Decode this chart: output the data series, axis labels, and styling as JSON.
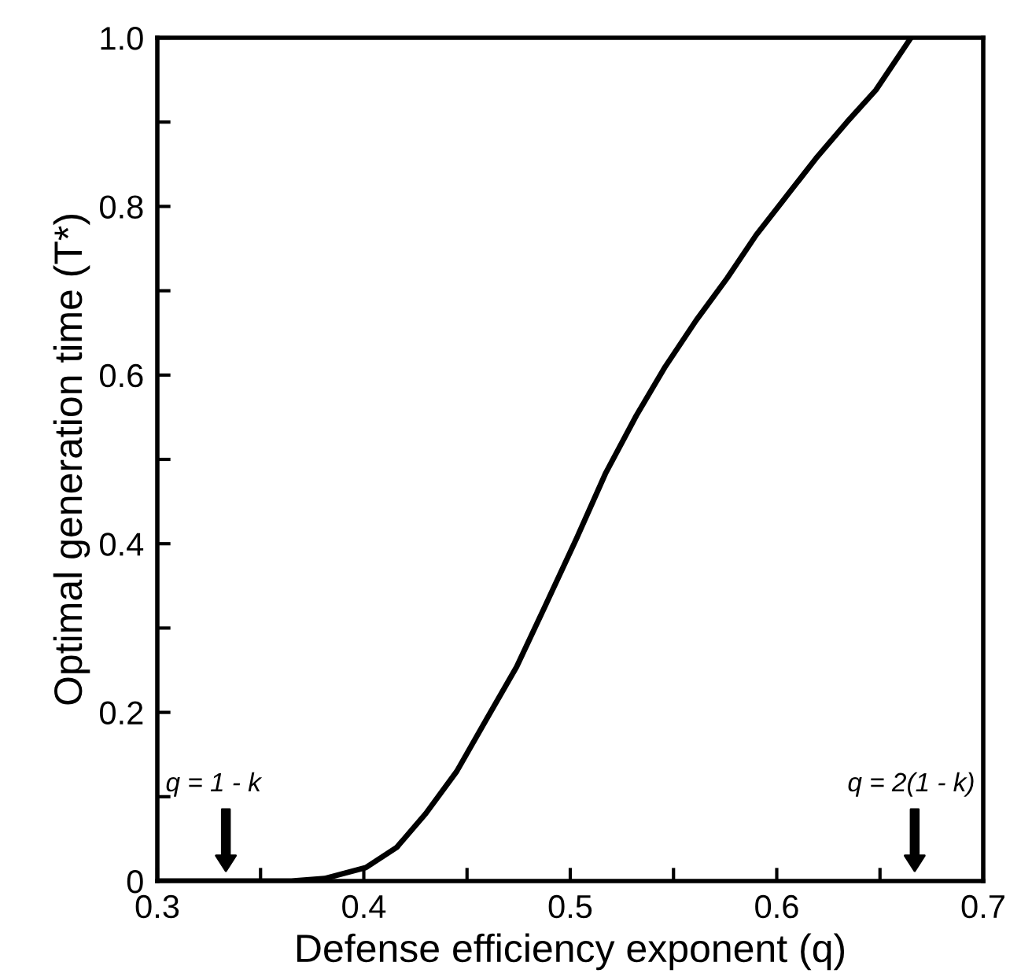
{
  "chart_data": {
    "type": "line",
    "xlabel": "Defense efficiency exponent (q)",
    "ylabel": "Optimal generation time (T*)",
    "x": [
      0.3,
      0.33,
      0.365,
      0.381,
      0.401,
      0.416,
      0.43,
      0.445,
      0.459,
      0.474,
      0.488,
      0.503,
      0.517,
      0.532,
      0.546,
      0.561,
      0.576,
      0.59,
      0.605,
      0.619,
      0.634,
      0.648,
      0.665
    ],
    "series": [
      {
        "color": "#000000",
        "values": [
          0,
          0,
          0,
          0.003,
          0.016,
          0.04,
          0.08,
          0.13,
          0.19,
          0.254,
          0.327,
          0.406,
          0.483,
          0.552,
          0.61,
          0.665,
          0.715,
          0.766,
          0.813,
          0.857,
          0.9,
          0.938,
          1.0
        ]
      }
    ],
    "xlim": [
      0.3,
      0.7
    ],
    "ylim": [
      0,
      1.0
    ],
    "xticks": [
      0.3,
      {
        "value": 0.35,
        "label": null
      },
      0.4,
      {
        "value": 0.45,
        "label": null
      },
      0.5,
      {
        "value": 0.55,
        "label": null
      },
      0.6,
      {
        "value": 0.65,
        "label": null
      },
      0.7
    ],
    "yticks": [
      0,
      {
        "value": 0.1,
        "label": null
      },
      0.2,
      {
        "value": 0.3,
        "label": null
      },
      0.4,
      {
        "value": 0.5,
        "label": null
      },
      0.6,
      {
        "value": 0.7,
        "label": null
      },
      0.8,
      {
        "value": 0.9,
        "label": null
      },
      {
        "value": 1.0,
        "label": "1.0"
      }
    ],
    "annotations": [
      "q = 1 - k",
      "q = 2(1 - k)"
    ],
    "grid": false,
    "legend": false,
    "marker": "none",
    "line_style": "solid"
  }
}
